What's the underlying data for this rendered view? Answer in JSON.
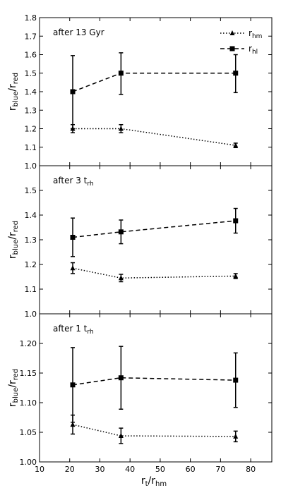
{
  "chart_data": {
    "type": "line",
    "xlabel": {
      "main": "r",
      "sub1": "t",
      "sep": "/r",
      "sub2": "hm"
    },
    "ylabel": {
      "main": "r",
      "sub1": "blue",
      "sep": "/r",
      "sub2": "red"
    },
    "xlim": [
      10,
      87
    ],
    "xticks": [
      "10",
      "20",
      "30",
      "40",
      "50",
      "60",
      "70",
      "80"
    ],
    "legend": {
      "placement": "top-right",
      "entries": [
        {
          "main": "r",
          "sub": "hm",
          "style": "dotted",
          "marker": "triangle"
        },
        {
          "main": "r",
          "sub": "hl",
          "style": "dashed",
          "marker": "square"
        }
      ]
    },
    "panels": [
      {
        "label": {
          "main": "after 13 Gyr",
          "sub": ""
        },
        "ylim": [
          1.0,
          1.8
        ],
        "yticks": [
          "1.0",
          "1.1",
          "1.2",
          "1.3",
          "1.4",
          "1.5",
          "1.6",
          "1.7",
          "1.8"
        ],
        "series": [
          {
            "name": "r_hm",
            "style": "dotted",
            "marker": "triangle",
            "x": [
              21,
              37,
              75
            ],
            "y": [
              1.2,
              1.2,
              1.11
            ],
            "err": [
              0.022,
              0.022,
              0.012
            ]
          },
          {
            "name": "r_hl",
            "style": "dashed",
            "marker": "square",
            "x": [
              21,
              37,
              75
            ],
            "y": [
              1.4,
              1.5,
              1.5
            ],
            "err_low": [
              0.2,
              0.115,
              0.105
            ],
            "err_high": [
              0.195,
              0.11,
              0.1
            ]
          }
        ]
      },
      {
        "label": {
          "main": "after 3 t",
          "sub": "rh"
        },
        "ylim": [
          1.0,
          1.6
        ],
        "yticks": [
          "1.0",
          "1.1",
          "1.2",
          "1.3",
          "1.4",
          "1.5"
        ],
        "series": [
          {
            "name": "r_hm",
            "style": "dotted",
            "marker": "triangle",
            "x": [
              21,
              37,
              75
            ],
            "y": [
              1.185,
              1.145,
              1.153
            ],
            "err": [
              0.022,
              0.015,
              0.01
            ]
          },
          {
            "name": "r_hl",
            "style": "dashed",
            "marker": "square",
            "x": [
              21,
              37,
              75
            ],
            "y": [
              1.31,
              1.332,
              1.377
            ],
            "err": [
              0.078,
              0.048,
              0.05
            ]
          }
        ]
      },
      {
        "label": {
          "main": "after 1 t",
          "sub": "rh"
        },
        "ylim": [
          1.0,
          1.25
        ],
        "yticks": [
          "1.00",
          "1.05",
          "1.10",
          "1.15",
          "1.20"
        ],
        "series": [
          {
            "name": "r_hm",
            "style": "dotted",
            "marker": "triangle",
            "x": [
              21,
              37,
              75
            ],
            "y": [
              1.063,
              1.044,
              1.043
            ],
            "err": [
              0.016,
              0.013,
              0.009
            ]
          },
          {
            "name": "r_hl",
            "style": "dashed",
            "marker": "square",
            "x": [
              21,
              37,
              75
            ],
            "y": [
              1.13,
              1.142,
              1.138
            ],
            "err": [
              0.063,
              0.053,
              0.046
            ]
          }
        ]
      }
    ]
  }
}
